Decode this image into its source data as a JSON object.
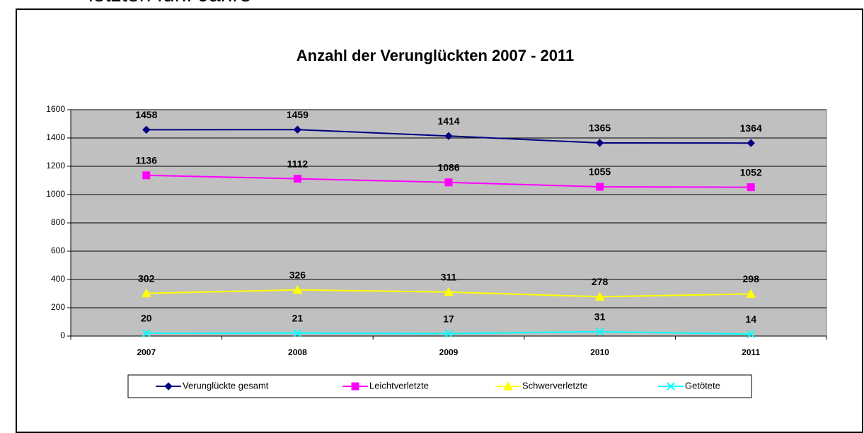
{
  "heading": "letzten fünf Jahre",
  "chart_data": {
    "type": "line",
    "title": "Anzahl der Verunglückten 2007 - 2011",
    "categories": [
      "2007",
      "2008",
      "2009",
      "2010",
      "2011"
    ],
    "series": [
      {
        "name": "Verunglückte gesamt",
        "color": "#000080",
        "marker": "diamond",
        "values": [
          1458,
          1459,
          1414,
          1365,
          1364
        ]
      },
      {
        "name": "Leichtverletzte",
        "color": "#ff00ff",
        "marker": "square",
        "values": [
          1136,
          1112,
          1086,
          1055,
          1052
        ]
      },
      {
        "name": "Schwerverletzte",
        "color": "#ffff00",
        "marker": "triangle",
        "values": [
          302,
          326,
          311,
          278,
          298
        ]
      },
      {
        "name": "Getötete",
        "color": "#00ffff",
        "marker": "x",
        "values": [
          20,
          21,
          17,
          31,
          14
        ]
      }
    ],
    "ylim": [
      0,
      1600
    ],
    "yticks": [
      0,
      200,
      400,
      600,
      800,
      1000,
      1200,
      1400,
      1600
    ],
    "grid": true,
    "legend": "bottom",
    "plot_background": "#c0c0c0"
  }
}
